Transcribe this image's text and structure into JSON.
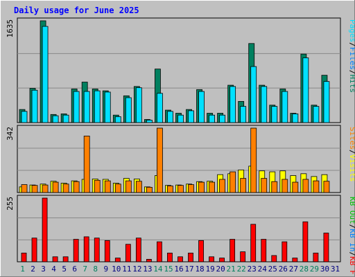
{
  "title": "Daily usage for June 2025",
  "colors": {
    "background": "#c0c0c0",
    "plot_bg": "#bfbfbf",
    "title": "#0000ff",
    "hits": "#00805f",
    "files": "#00e0ff",
    "pages": "#00e0ff",
    "sites": "#ff8000",
    "visits": "#ffff00",
    "kb_f": "#ff0000",
    "kb_in": "#0080ff",
    "kb_out": "#00c000",
    "weekend_label": "#00805f",
    "weekday_label": "#000080"
  },
  "chart_data": [
    {
      "type": "bar",
      "ylabel_max": "1635",
      "ylim": [
        0,
        1635
      ],
      "legend": [
        {
          "text": "Hits",
          "color": "#00805f"
        },
        {
          "text": "Files",
          "color": "#0080ff"
        },
        {
          "text": "Pages",
          "color": "#00e0ff"
        }
      ],
      "categories": [
        "1",
        "2",
        "3",
        "4",
        "5",
        "6",
        "7",
        "8",
        "9",
        "10",
        "11",
        "12",
        "13",
        "14",
        "15",
        "16",
        "17",
        "18",
        "19",
        "20",
        "21",
        "22",
        "23",
        "24",
        "25",
        "26",
        "27",
        "28",
        "29",
        "30",
        "31"
      ],
      "series": [
        {
          "name": "Hits",
          "values": [
            210,
            550,
            1635,
            130,
            140,
            540,
            650,
            540,
            510,
            120,
            430,
            580,
            50,
            860,
            200,
            150,
            210,
            530,
            150,
            150,
            600,
            340,
            1270,
            600,
            280,
            540,
            150,
            1100,
            280,
            760,
            0
          ]
        },
        {
          "name": "Files",
          "values": [
            180,
            520,
            1545,
            110,
            120,
            500,
            500,
            510,
            490,
            95,
            400,
            560,
            40,
            470,
            180,
            120,
            190,
            500,
            120,
            120,
            580,
            260,
            900,
            580,
            260,
            500,
            140,
            1040,
            260,
            660,
            0
          ]
        }
      ]
    },
    {
      "type": "bar",
      "ylabel_max": "342",
      "ylim": [
        0,
        342
      ],
      "legend": [
        {
          "text": "Visits",
          "color": "#ffff00"
        },
        {
          "text": "Sites",
          "color": "#ff8000"
        }
      ],
      "categories": [
        "1",
        "2",
        "3",
        "4",
        "5",
        "6",
        "7",
        "8",
        "9",
        "10",
        "11",
        "12",
        "13",
        "14",
        "15",
        "16",
        "17",
        "18",
        "19",
        "20",
        "21",
        "22",
        "23",
        "24",
        "25",
        "26",
        "27",
        "28",
        "29",
        "30",
        "31"
      ],
      "series": [
        {
          "name": "Visits",
          "values": [
            30,
            40,
            45,
            60,
            50,
            62,
            70,
            72,
            70,
            50,
            75,
            72,
            30,
            90,
            38,
            40,
            45,
            58,
            60,
            95,
            100,
            120,
            140,
            115,
            110,
            115,
            90,
            100,
            85,
            95,
            0
          ]
        },
        {
          "name": "Sites",
          "values": [
            42,
            38,
            40,
            55,
            45,
            58,
            300,
            65,
            62,
            45,
            62,
            60,
            28,
            342,
            35,
            38,
            42,
            55,
            55,
            70,
            110,
            75,
            342,
            75,
            58,
            70,
            55,
            70,
            62,
            60,
            0
          ]
        }
      ]
    },
    {
      "type": "bar",
      "ylabel_max": "255",
      "ylim": [
        0,
        255
      ],
      "legend": [
        {
          "text": "KB F",
          "color": "#ff0000"
        },
        {
          "text": "KB In",
          "color": "#0080ff"
        },
        {
          "text": "KB Out",
          "color": "#00c000"
        }
      ],
      "categories": [
        "1",
        "2",
        "3",
        "4",
        "5",
        "6",
        "7",
        "8",
        "9",
        "10",
        "11",
        "12",
        "13",
        "14",
        "15",
        "16",
        "17",
        "18",
        "19",
        "20",
        "21",
        "22",
        "23",
        "24",
        "25",
        "26",
        "27",
        "28",
        "29",
        "30",
        "31"
      ],
      "series": [
        {
          "name": "KB F",
          "values": [
            35,
            95,
            255,
            20,
            20,
            90,
            100,
            95,
            85,
            15,
            70,
            95,
            10,
            80,
            35,
            20,
            35,
            85,
            20,
            15,
            90,
            40,
            150,
            90,
            25,
            80,
            15,
            160,
            35,
            115,
            0
          ]
        }
      ]
    }
  ],
  "x_labels": [
    {
      "text": "1",
      "weekend": true
    },
    {
      "text": "2",
      "weekend": false
    },
    {
      "text": "3",
      "weekend": false
    },
    {
      "text": "4",
      "weekend": false
    },
    {
      "text": "5",
      "weekend": false
    },
    {
      "text": "6",
      "weekend": false
    },
    {
      "text": "7",
      "weekend": true
    },
    {
      "text": "8",
      "weekend": true
    },
    {
      "text": "9",
      "weekend": false
    },
    {
      "text": "10",
      "weekend": false
    },
    {
      "text": "11",
      "weekend": false
    },
    {
      "text": "12",
      "weekend": false
    },
    {
      "text": "13",
      "weekend": false
    },
    {
      "text": "14",
      "weekend": true
    },
    {
      "text": "15",
      "weekend": true
    },
    {
      "text": "16",
      "weekend": false
    },
    {
      "text": "17",
      "weekend": false
    },
    {
      "text": "18",
      "weekend": false
    },
    {
      "text": "19",
      "weekend": false
    },
    {
      "text": "20",
      "weekend": false
    },
    {
      "text": "21",
      "weekend": true
    },
    {
      "text": "22",
      "weekend": true
    },
    {
      "text": "23",
      "weekend": false
    },
    {
      "text": "24",
      "weekend": false
    },
    {
      "text": "25",
      "weekend": false
    },
    {
      "text": "26",
      "weekend": false
    },
    {
      "text": "27",
      "weekend": false
    },
    {
      "text": "28",
      "weekend": true
    },
    {
      "text": "29",
      "weekend": true
    },
    {
      "text": "30",
      "weekend": false
    },
    {
      "text": "31",
      "weekend": false
    }
  ]
}
